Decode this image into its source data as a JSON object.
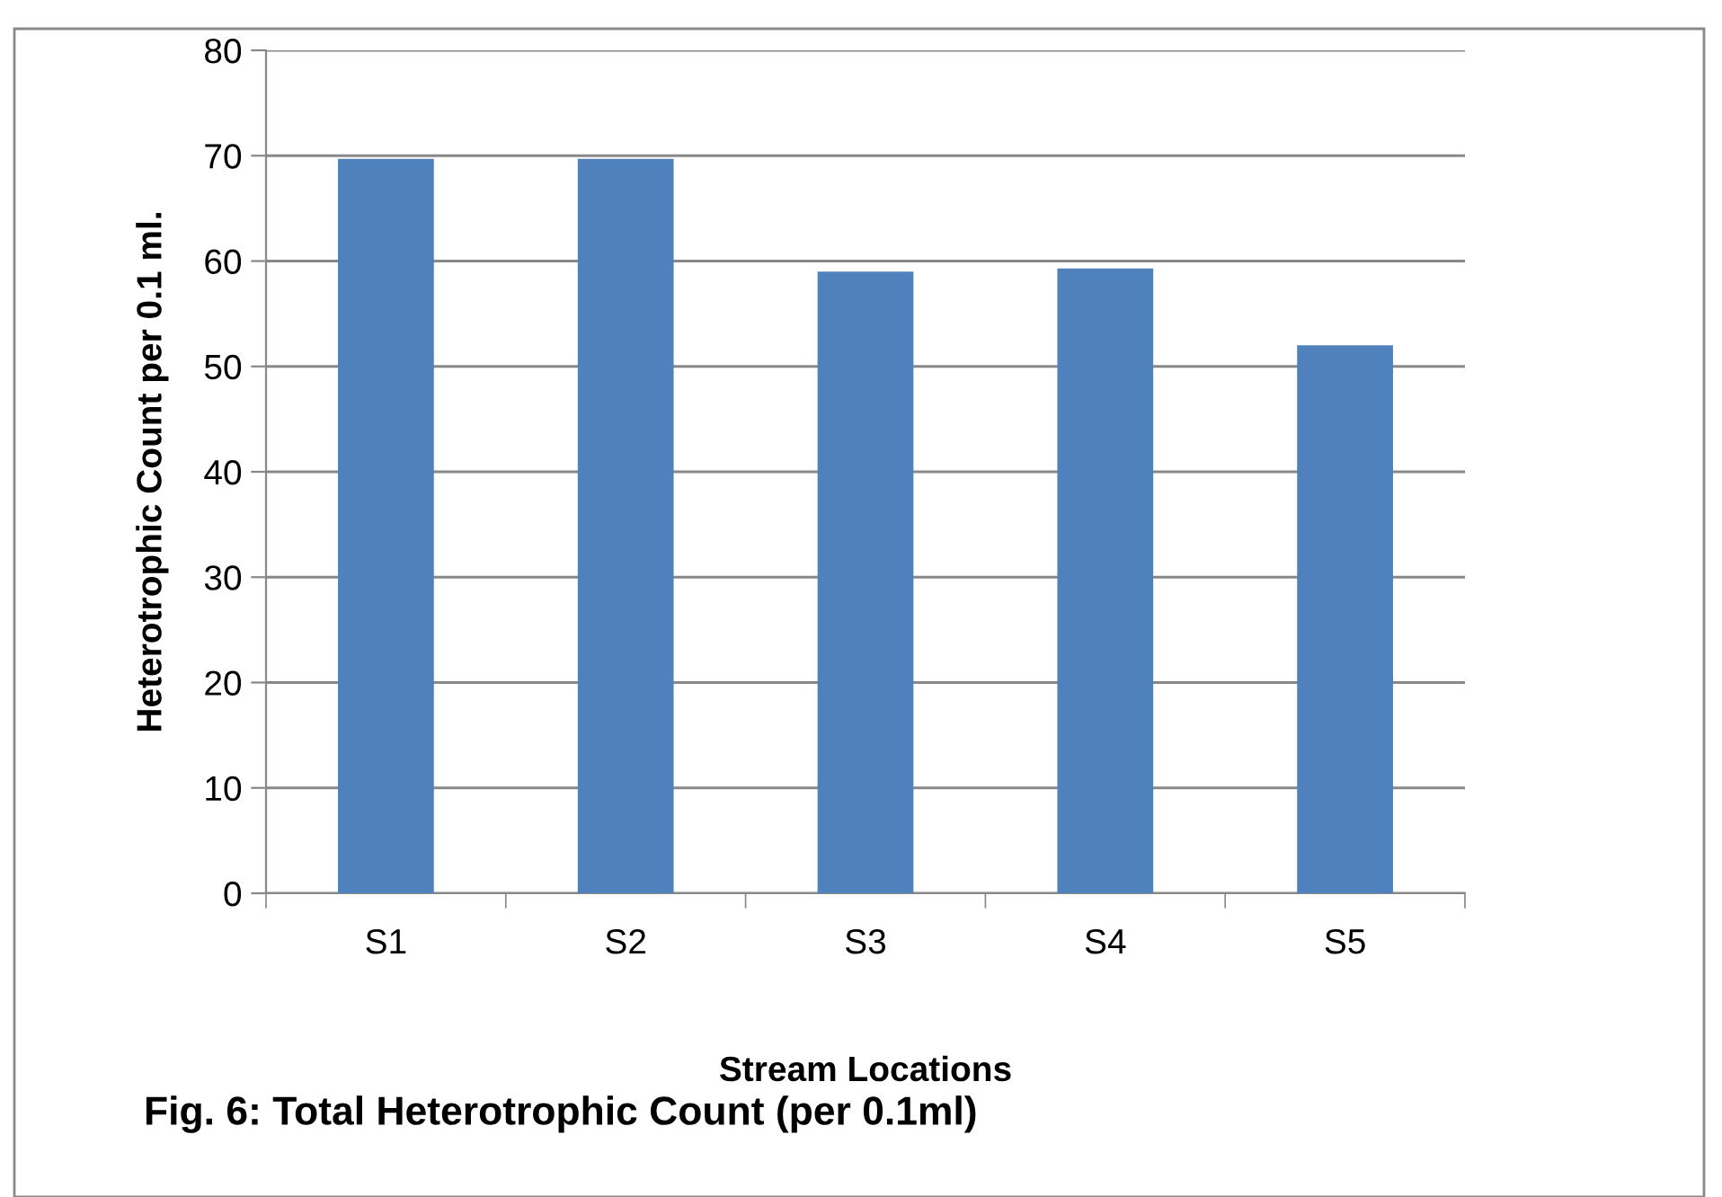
{
  "chart_data": {
    "type": "bar",
    "title": "Fig. 6: Total Heterotrophic Count (per 0.1ml)",
    "xlabel": "Stream Locations",
    "ylabel": "Heterotrophic Count per 0.1 ml.",
    "categories": [
      "S1",
      "S2",
      "S3",
      "S4",
      "S5"
    ],
    "values": [
      69.7,
      69.7,
      59.0,
      59.3,
      52.0
    ],
    "color": "#4f81bd",
    "ylim": [
      0,
      80
    ],
    "yticks": [
      0,
      10,
      20,
      30,
      40,
      50,
      60,
      70,
      80
    ],
    "grid": "y",
    "legend": false
  }
}
